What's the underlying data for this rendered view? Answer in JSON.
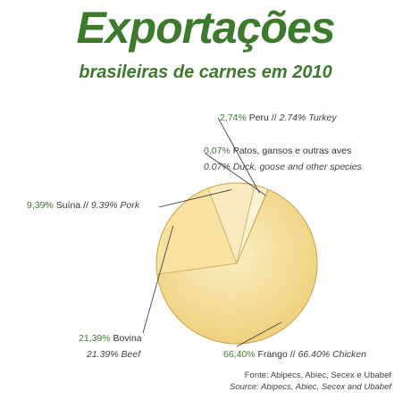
{
  "title": "Exportações",
  "subtitle": "brasileiras de carnes em 2010",
  "chart_data": {
    "type": "pie",
    "categories": [
      "Frango",
      "Bovina",
      "Suína",
      "Peru",
      "Patos, gansos e outras aves"
    ],
    "values": [
      66.4,
      21.39,
      9.39,
      2.74,
      0.07
    ],
    "labels": [
      {
        "pct": "66,40%",
        "pt": "Frango",
        "en": "66.40% Chicken"
      },
      {
        "pct": "21,39%",
        "pt": "Bovina",
        "en": "21.39% Beef"
      },
      {
        "pct": "9,39%",
        "pt": "Suína",
        "en": "9.39% Pork"
      },
      {
        "pct": "2,74%",
        "pt": "Peru",
        "en": "2.74% Turkey"
      },
      {
        "pct": "0,07%",
        "pt": "Patos, gansos e outras aves",
        "en": "0.07% Duck, goose and other species"
      }
    ],
    "colors": [
      "#f5d98a",
      "#f7e2a2",
      "#f9ebbf",
      "#fbf2d6",
      "#fdf8ea"
    ],
    "accent": "#3d7a2e",
    "start_angle_deg": 23.1
  },
  "separator": "//",
  "source": {
    "pt": "Fonte: Abipecs, Abiec, Secex e Ubabef",
    "en": "Source: Abipecs, Abiec, Secex and Ubabef"
  }
}
